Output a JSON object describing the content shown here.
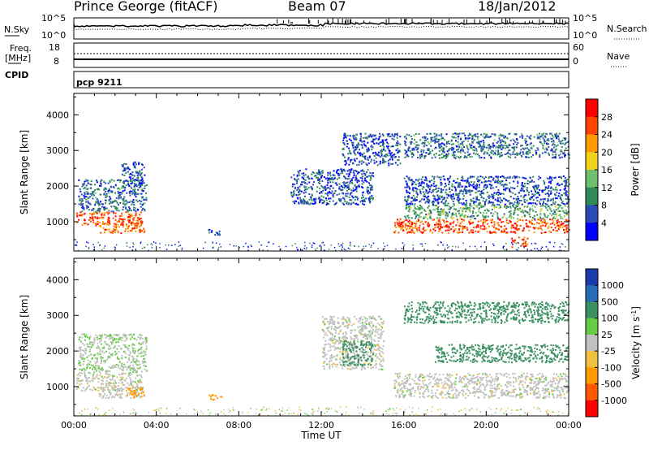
{
  "header": {
    "station": "Prince George (fitACF)",
    "beam": "Beam 07",
    "date": "18/Jan/2012"
  },
  "noise_panel": {
    "left_label": "N.Sky",
    "left_ticks": [
      "10^5",
      "10^0"
    ],
    "right_label": "N.Search",
    "right_ticks": [
      "10^5",
      "10^0"
    ]
  },
  "freq_panel": {
    "left_label_1": "Freq.",
    "left_label_2": "[MHz]",
    "left_ticks": [
      "18",
      "8"
    ],
    "right_label": "Nave",
    "right_ticks": [
      "60",
      "0"
    ]
  },
  "cpid_label": "CPID",
  "cpid_value": "pcp 9211",
  "chart_data": [
    {
      "type": "heatmap",
      "quantity": "Power",
      "ylabel": "Slant Range [km]",
      "xlabel": "Time UT",
      "x_range_hours": [
        0,
        24
      ],
      "ylim": [
        180,
        4600
      ],
      "y_ticks": [
        "1000",
        "2000",
        "3000",
        "4000"
      ],
      "x_ticks": [
        "00:00",
        "04:00",
        "08:00",
        "12:00",
        "16:00",
        "20:00",
        "00:00"
      ],
      "colorbar_label": "Power [dB]",
      "colorbar_ticks": [
        "4",
        "8",
        "12",
        "16",
        "20",
        "24",
        "28"
      ],
      "colorscale": [
        "#0000ff",
        "#2a4bb8",
        "#2e8b57",
        "#6fbf6f",
        "#f2d21b",
        "#ff9900",
        "#ff4500",
        "#ff0000"
      ],
      "regions": [
        {
          "t0": 0.1,
          "t1": 3.3,
          "r0": 900,
          "r1": 1300,
          "value": 26
        },
        {
          "t0": 1.2,
          "t1": 3.4,
          "r0": 700,
          "r1": 1000,
          "value": 24
        },
        {
          "t0": 0.2,
          "t1": 3.5,
          "r0": 1300,
          "r1": 2200,
          "value": 8
        },
        {
          "t0": 2.3,
          "t1": 3.4,
          "r0": 2000,
          "r1": 2700,
          "value": 6
        },
        {
          "t0": 6.5,
          "t1": 7.2,
          "r0": 650,
          "r1": 800,
          "value": 6
        },
        {
          "t0": 10.5,
          "t1": 14.5,
          "r0": 1500,
          "r1": 2500,
          "value": 6
        },
        {
          "t0": 13.0,
          "t1": 15.8,
          "r0": 2600,
          "r1": 3500,
          "value": 6
        },
        {
          "t0": 15.5,
          "t1": 24.0,
          "r0": 700,
          "r1": 1100,
          "value": 26
        },
        {
          "t0": 16.0,
          "t1": 24.0,
          "r0": 1100,
          "r1": 1500,
          "value": 12
        },
        {
          "t0": 16.0,
          "t1": 24.0,
          "r0": 1500,
          "r1": 2300,
          "value": 6
        },
        {
          "t0": 16.0,
          "t1": 24.0,
          "r0": 2800,
          "r1": 3500,
          "value": 8
        },
        {
          "t0": 21.2,
          "t1": 22.0,
          "r0": 300,
          "r1": 600,
          "value": 28
        }
      ]
    },
    {
      "type": "heatmap",
      "quantity": "Velocity",
      "ylabel": "Slant Range [km]",
      "xlabel": "Time UT",
      "x_range_hours": [
        0,
        24
      ],
      "ylim": [
        180,
        4600
      ],
      "y_ticks": [
        "1000",
        "2000",
        "3000",
        "4000"
      ],
      "x_ticks": [
        "00:00",
        "04:00",
        "08:00",
        "12:00",
        "16:00",
        "20:00",
        "00:00"
      ],
      "colorbar_label": "Velocity [m s",
      "colorbar_label_sup": "-1",
      "colorbar_label_end": "]",
      "colorbar_ticks": [
        "1000",
        "500",
        "100",
        "25",
        "-25",
        "-100",
        "-500",
        "-1000"
      ],
      "colorscale": [
        "#1a3caa",
        "#2a6bb8",
        "#3a9060",
        "#66cc44",
        "#c0c0c0",
        "#f0c040",
        "#ff9900",
        "#ff5a00",
        "#ff0000"
      ],
      "regions": [
        {
          "t0": 0.1,
          "t1": 3.3,
          "r0": 900,
          "r1": 1400,
          "value": 0
        },
        {
          "t0": 1.2,
          "t1": 3.4,
          "r0": 700,
          "r1": 1000,
          "value": 0
        },
        {
          "t0": 0.2,
          "t1": 3.5,
          "r0": 1400,
          "r1": 2500,
          "value": 20
        },
        {
          "t0": 2.5,
          "t1": 3.4,
          "r0": 700,
          "r1": 1000,
          "value": -300
        },
        {
          "t0": 6.5,
          "t1": 7.2,
          "r0": 650,
          "r1": 800,
          "value": -300
        },
        {
          "t0": 12.0,
          "t1": 15.0,
          "r0": 1500,
          "r1": 3000,
          "value": 0
        },
        {
          "t0": 13.0,
          "t1": 14.5,
          "r0": 1600,
          "r1": 2300,
          "value": 150
        },
        {
          "t0": 15.5,
          "t1": 24.0,
          "r0": 700,
          "r1": 1400,
          "value": 0
        },
        {
          "t0": 17.5,
          "t1": 24.0,
          "r0": 1700,
          "r1": 2200,
          "value": 400
        },
        {
          "t0": 16.0,
          "t1": 24.0,
          "r0": 2800,
          "r1": 3400,
          "value": 200
        }
      ]
    }
  ]
}
